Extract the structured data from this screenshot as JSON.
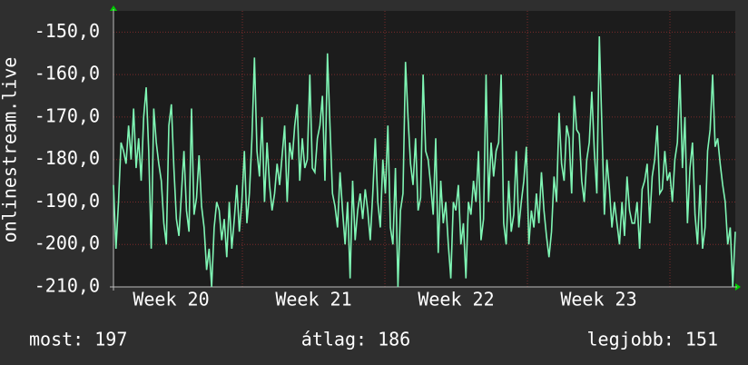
{
  "chart_data": {
    "type": "line",
    "y_label": "onlinestream.live",
    "ylim": [
      -210,
      -145
    ],
    "yticks": [
      {
        "value": -150,
        "label": "-150,0"
      },
      {
        "value": -160,
        "label": "-160,0"
      },
      {
        "value": -170,
        "label": "-170,0"
      },
      {
        "value": -180,
        "label": "-180,0"
      },
      {
        "value": -190,
        "label": "-190,0"
      },
      {
        "value": -200,
        "label": "-200,0"
      },
      {
        "value": -210,
        "label": "-210,0"
      }
    ],
    "x_labels": [
      "Week 20",
      "Week 21",
      "Week 22",
      "Week 23"
    ],
    "grid": true,
    "series": [
      {
        "color": "#7ff5b4",
        "values": [
          -186,
          -201,
          -190,
          -176,
          -178,
          -181,
          -172,
          -180,
          -168,
          -182,
          -175,
          -185,
          -170,
          -163,
          -178,
          -201,
          -168,
          -176,
          -181,
          -185,
          -195,
          -200,
          -172,
          -167,
          -182,
          -194,
          -198,
          -188,
          -178,
          -192,
          -197,
          -168,
          -193,
          -189,
          -179,
          -191,
          -196,
          -206,
          -201,
          -210,
          -196,
          -190,
          -192,
          -199,
          -194,
          -203,
          -190,
          -201,
          -194,
          -186,
          -197,
          -190,
          -178,
          -195,
          -188,
          -175,
          -156,
          -178,
          -184,
          -170,
          -190,
          -176,
          -186,
          -192,
          -188,
          -181,
          -186,
          -179,
          -172,
          -190,
          -176,
          -180,
          -172,
          -167,
          -185,
          -175,
          -182,
          -180,
          -160,
          -182,
          -183,
          -175,
          -172,
          -165,
          -185,
          -155,
          -172,
          -188,
          -191,
          -196,
          -183,
          -192,
          -200,
          -190,
          -208,
          -185,
          -199,
          -192,
          -188,
          -194,
          -187,
          -192,
          -199,
          -188,
          -175,
          -190,
          -196,
          -180,
          -188,
          -172,
          -196,
          -200,
          -182,
          -210,
          -192,
          -188,
          -157,
          -170,
          -181,
          -186,
          -175,
          -192,
          -189,
          -160,
          -178,
          -180,
          -186,
          -193,
          -175,
          -202,
          -185,
          -195,
          -190,
          -200,
          -208,
          -190,
          -192,
          -186,
          -200,
          -195,
          -208,
          -190,
          -193,
          -185,
          -190,
          -178,
          -199,
          -194,
          -160,
          -190,
          -176,
          -184,
          -178,
          -176,
          -160,
          -195,
          -200,
          -185,
          -197,
          -193,
          -178,
          -196,
          -190,
          -185,
          -177,
          -200,
          -192,
          -196,
          -188,
          -195,
          -183,
          -192,
          -198,
          -203,
          -197,
          -184,
          -190,
          -169,
          -181,
          -185,
          -172,
          -175,
          -188,
          -165,
          -173,
          -174,
          -185,
          -190,
          -180,
          -176,
          -164,
          -178,
          -188,
          -151,
          -172,
          -193,
          -180,
          -187,
          -196,
          -190,
          -195,
          -200,
          -190,
          -198,
          -184,
          -192,
          -195,
          -195,
          -190,
          -201,
          -187,
          -185,
          -181,
          -195,
          -184,
          -180,
          -172,
          -188,
          -187,
          -178,
          -185,
          -183,
          -190,
          -180,
          -176,
          -160,
          -182,
          -170,
          -195,
          -182,
          -176,
          -193,
          -200,
          -186,
          -201,
          -196,
          -178,
          -173,
          -160,
          -177,
          -175,
          -181,
          -186,
          -190,
          -200,
          -196,
          -210,
          -197
        ]
      }
    ],
    "footer": [
      "most: 197",
      "átlag: 186",
      "legjobb: 151"
    ]
  }
}
